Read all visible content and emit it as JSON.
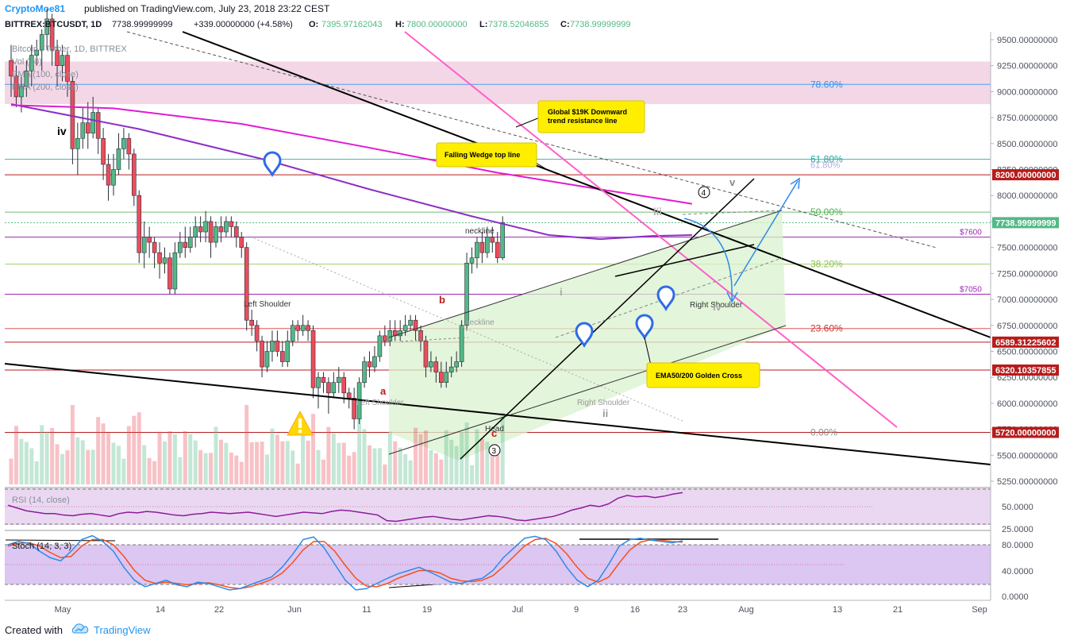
{
  "header": {
    "author": "CryptoMoe81",
    "published": "published on TradingView.com, July 23, 2018 23:22 CEST"
  },
  "legend": {
    "symbol": "BITTREX:BTCUSDT, 1D",
    "last": "7738.99999999",
    "change": "+339.00000000 (+4.58%)",
    "o_label": "O:",
    "o": "7395.97162043",
    "h_label": "H:",
    "h": "7800.00000000",
    "l_label": "L:",
    "l": "7378.52046855",
    "c_label": "C:",
    "c": "7738.99999999",
    "subtitle": "Bitcoin / Tether, 1D, BITTREX",
    "vol": "Vol (20)",
    "ema1": "EMA (100, close)",
    "ema2": "EMA (200, close)",
    "rsi": "RSI (14, close)",
    "stoch": "Stoch (14, 3, 3)"
  },
  "colors": {
    "up": "#53b987",
    "down": "#eb4d5c",
    "ema100": "#8c2fc6",
    "ema200": "#e11bd3",
    "fib_pink": "#f3d7e6",
    "wedge_green": "#d9f1cf",
    "rsi_bg": "#ead8f2",
    "stoch_bg": "#dcc6f2",
    "rsi_line": "#8c1c9a",
    "stoch_k": "#2e8ae6",
    "stoch_d": "#f4511e",
    "accent": "#2196f3"
  },
  "chart_data": {
    "type": "candlestick",
    "title": "Bitcoin / Tether, 1D, BITTREX",
    "ylim": [
      5200,
      9600
    ],
    "y_ticks": [
      "9500.00000000",
      "9250.00000000",
      "9000.00000000",
      "8750.00000000",
      "8500.00000000",
      "8250.00000000",
      "8000.00000000",
      "7750.00000000",
      "7500.00000000",
      "7250.00000000",
      "7000.00000000",
      "6750.00000000",
      "6500.00000000",
      "6250.00000000",
      "6000.00000000",
      "5750.00000000",
      "5500.00000000",
      "5250.00000000"
    ],
    "x_ticks": [
      "May",
      "14",
      "22",
      "Jun",
      "11",
      "19",
      "Jul",
      "9",
      "16",
      "23",
      "Aug",
      "13",
      "21",
      "Sep"
    ],
    "price_tags": [
      {
        "label": "8200.00000000",
        "value": 8200,
        "color": "#b71c1c"
      },
      {
        "label": "7738.99999999",
        "value": 7739,
        "color": "#53b987"
      },
      {
        "label": "6589.31225602",
        "value": 6589,
        "color": "#b71c1c"
      },
      {
        "label": "6320.10357855",
        "value": 6320,
        "color": "#b71c1c"
      },
      {
        "label": "5720.00000000",
        "value": 5720,
        "color": "#b71c1c"
      }
    ],
    "levels": [
      {
        "label": "$7600",
        "value": 7600,
        "color": "#9c27b0"
      },
      {
        "label": "$7050",
        "value": 7050,
        "color": "#9c27b0"
      }
    ],
    "fib": [
      {
        "label": "78.60%",
        "value": 9070,
        "color": "#2196f3"
      },
      {
        "label": "61.80%",
        "value": 8350,
        "color": "#26a69a"
      },
      {
        "label": "50.00%",
        "value": 7840,
        "color": "#4caf50"
      },
      {
        "label": "38.20%",
        "value": 7340,
        "color": "#8bc34a"
      },
      {
        "label": "23.60%",
        "value": 6720,
        "color": "#d32f2f"
      },
      {
        "label": "0.00%",
        "value": 5720,
        "color": "#888888"
      }
    ],
    "fib_faded": "61.80%",
    "candles": [
      [
        9300,
        9150,
        9450,
        8950
      ],
      [
        9150,
        8950,
        9250,
        8850
      ],
      [
        8950,
        9050,
        9150,
        8800
      ],
      [
        9050,
        9200,
        9300,
        8950
      ],
      [
        9200,
        9350,
        9450,
        9050
      ],
      [
        9350,
        9400,
        9500,
        9250
      ],
      [
        9400,
        9550,
        9600,
        9200
      ],
      [
        9550,
        9700,
        9800,
        9400
      ],
      [
        9700,
        9400,
        9750,
        9250
      ],
      [
        9400,
        9250,
        9500,
        9050
      ],
      [
        9250,
        9350,
        9450,
        9100
      ],
      [
        9350,
        9100,
        9400,
        8950
      ],
      [
        9100,
        8450,
        9150,
        8300
      ],
      [
        8450,
        8550,
        8700,
        8200
      ],
      [
        8550,
        8700,
        8850,
        8450
      ],
      [
        8700,
        8600,
        8900,
        8450
      ],
      [
        8600,
        8800,
        8950,
        8550
      ],
      [
        8800,
        8550,
        8850,
        8400
      ],
      [
        8550,
        8300,
        8650,
        8150
      ],
      [
        8300,
        8100,
        8400,
        7950
      ],
      [
        8100,
        8250,
        8400,
        8000
      ],
      [
        8250,
        8450,
        8600,
        8200
      ],
      [
        8450,
        8550,
        8650,
        8350
      ],
      [
        8550,
        8400,
        8600,
        8250
      ],
      [
        8400,
        8000,
        8450,
        7900
      ],
      [
        8000,
        7450,
        8050,
        7350
      ],
      [
        7450,
        7600,
        7750,
        7300
      ],
      [
        7600,
        7550,
        7700,
        7400
      ],
      [
        7550,
        7450,
        7600,
        7300
      ],
      [
        7450,
        7350,
        7550,
        7200
      ],
      [
        7350,
        7400,
        7500,
        7250
      ],
      [
        7400,
        7100,
        7450,
        7050
      ],
      [
        7100,
        7450,
        7550,
        7050
      ],
      [
        7450,
        7550,
        7650,
        7400
      ],
      [
        7550,
        7500,
        7700,
        7400
      ],
      [
        7500,
        7600,
        7700,
        7450
      ],
      [
        7600,
        7700,
        7800,
        7500
      ],
      [
        7700,
        7650,
        7800,
        7550
      ],
      [
        7650,
        7750,
        7850,
        7550
      ],
      [
        7750,
        7550,
        7800,
        7400
      ],
      [
        7550,
        7700,
        7750,
        7500
      ],
      [
        7700,
        7650,
        7800,
        7550
      ],
      [
        7650,
        7750,
        7800,
        7600
      ],
      [
        7750,
        7700,
        7800,
        7600
      ],
      [
        7700,
        7600,
        7750,
        7500
      ],
      [
        7600,
        7500,
        7650,
        7400
      ],
      [
        7500,
        6800,
        7550,
        6700
      ],
      [
        6800,
        6750,
        6900,
        6650
      ],
      [
        6750,
        6600,
        6800,
        6500
      ],
      [
        6600,
        6350,
        6650,
        6250
      ],
      [
        6350,
        6500,
        6600,
        6300
      ],
      [
        6500,
        6600,
        6700,
        6400
      ],
      [
        6600,
        6500,
        6700,
        6450
      ],
      [
        6500,
        6400,
        6600,
        6350
      ],
      [
        6400,
        6600,
        6700,
        6350
      ],
      [
        6600,
        6750,
        6800,
        6550
      ],
      [
        6750,
        6700,
        6800,
        6600
      ],
      [
        6700,
        6750,
        6850,
        6650
      ],
      [
        6750,
        6700,
        6800,
        6600
      ],
      [
        6700,
        6150,
        6750,
        6050
      ],
      [
        6150,
        6250,
        6300,
        5950
      ],
      [
        6250,
        6200,
        6300,
        6100
      ],
      [
        6200,
        6100,
        6250,
        5900
      ],
      [
        6100,
        6200,
        6300,
        6050
      ],
      [
        6200,
        6250,
        6350,
        6100
      ],
      [
        6250,
        6100,
        6300,
        6000
      ],
      [
        6100,
        6050,
        6150,
        5950
      ],
      [
        6050,
        5850,
        6150,
        5750
      ],
      [
        5850,
        6200,
        6250,
        5800
      ],
      [
        6200,
        6400,
        6450,
        6150
      ],
      [
        6400,
        6350,
        6500,
        6250
      ],
      [
        6350,
        6450,
        6550,
        6300
      ],
      [
        6450,
        6650,
        6700,
        6400
      ],
      [
        6650,
        6600,
        6750,
        6550
      ],
      [
        6600,
        6700,
        6800,
        6550
      ],
      [
        6700,
        6650,
        6800,
        6600
      ],
      [
        6650,
        6700,
        6800,
        6600
      ],
      [
        6700,
        6750,
        6850,
        6650
      ],
      [
        6750,
        6800,
        6850,
        6700
      ],
      [
        6800,
        6700,
        6850,
        6600
      ],
      [
        6700,
        6600,
        6750,
        6500
      ],
      [
        6600,
        6350,
        6650,
        6250
      ],
      [
        6350,
        6400,
        6500,
        6300
      ],
      [
        6400,
        6300,
        6450,
        6200
      ],
      [
        6300,
        6200,
        6400,
        6150
      ],
      [
        6200,
        6300,
        6400,
        6150
      ],
      [
        6300,
        6350,
        6450,
        6250
      ],
      [
        6350,
        6400,
        6500,
        6300
      ],
      [
        6400,
        6750,
        6800,
        6350
      ],
      [
        6750,
        7350,
        7450,
        6700
      ],
      [
        7350,
        7400,
        7500,
        7250
      ],
      [
        7400,
        7550,
        7600,
        7300
      ],
      [
        7550,
        7450,
        7650,
        7350
      ],
      [
        7450,
        7600,
        7700,
        7400
      ],
      [
        7600,
        7550,
        7700,
        7450
      ],
      [
        7550,
        7400,
        7650,
        7350
      ],
      [
        7400,
        7739,
        7800,
        7378
      ]
    ],
    "ema100": [
      [
        0,
        8880
      ],
      [
        25,
        8640
      ],
      [
        50,
        8340
      ],
      [
        70,
        8060
      ],
      [
        90,
        7800
      ],
      [
        105,
        7620
      ],
      [
        115,
        7580
      ],
      [
        125,
        7610
      ],
      [
        133,
        7620
      ]
    ],
    "ema200": [
      [
        0,
        8870
      ],
      [
        20,
        8840
      ],
      [
        45,
        8690
      ],
      [
        70,
        8460
      ],
      [
        95,
        8220
      ],
      [
        115,
        8060
      ],
      [
        128,
        7960
      ],
      [
        133,
        7920
      ]
    ],
    "annotations": {
      "neckline_label": "neckline",
      "left_shoulder": "Left Shoulder",
      "head": "Head",
      "right_shoulder": "Right Shoulder",
      "wave_iv": "iv",
      "wave_v": "v",
      "wave_a": "a",
      "wave_b": "b",
      "wave_c": "c",
      "wave_ii": "ii",
      "wave_iii": "iii",
      "wave_i": "i",
      "wave_iv_small": "iv",
      "circle3": "3",
      "circle4": "4",
      "global_trend": "Global $19K Downward trend resistance line",
      "falling_wedge": "Falling Wedge top line",
      "golden_cross": "EMA50/200 Golden Cross"
    }
  },
  "rsi": {
    "ticks": [
      "50.0000",
      "25.0000"
    ],
    "values": [
      52,
      48,
      44,
      42,
      40,
      40,
      38,
      37,
      39,
      40,
      38,
      36,
      40,
      42,
      41,
      43,
      42,
      40,
      38,
      37,
      39,
      40,
      42,
      41,
      40,
      41,
      42,
      40,
      38,
      36,
      38,
      40,
      42,
      41,
      40,
      43,
      45,
      44,
      42,
      40,
      38,
      30,
      29,
      31,
      33,
      35,
      36,
      34,
      32,
      31,
      33,
      35,
      37,
      36,
      34,
      31,
      30,
      32,
      34,
      36,
      40,
      45,
      48,
      52,
      50,
      54,
      62,
      66,
      64,
      65,
      63,
      65,
      68,
      70
    ]
  },
  "stoch": {
    "ticks": [
      "80.0000",
      "40.0000",
      "0.0000"
    ],
    "k": [
      80,
      85,
      82,
      70,
      60,
      55,
      70,
      88,
      94,
      85,
      70,
      45,
      25,
      15,
      20,
      25,
      18,
      15,
      22,
      20,
      15,
      10,
      12,
      18,
      24,
      30,
      45,
      65,
      88,
      92,
      75,
      50,
      25,
      10,
      12,
      20,
      28,
      35,
      40,
      45,
      38,
      30,
      22,
      20,
      25,
      28,
      40,
      60,
      75,
      90,
      93,
      88,
      70,
      45,
      25,
      15,
      25,
      50,
      78,
      88,
      90,
      87,
      85,
      83,
      86
    ],
    "d": [
      78,
      82,
      83,
      78,
      68,
      60,
      62,
      78,
      88,
      88,
      80,
      62,
      40,
      25,
      20,
      22,
      20,
      18,
      20,
      21,
      18,
      14,
      12,
      15,
      20,
      26,
      36,
      52,
      72,
      85,
      85,
      70,
      48,
      28,
      16,
      15,
      20,
      28,
      34,
      40,
      40,
      36,
      28,
      24,
      23,
      25,
      32,
      46,
      62,
      78,
      88,
      90,
      82,
      66,
      45,
      28,
      22,
      30,
      52,
      72,
      84,
      88,
      87,
      85,
      84
    ]
  }
}
